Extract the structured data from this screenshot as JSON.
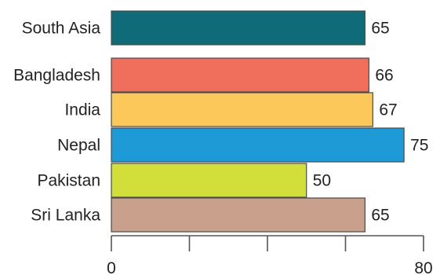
{
  "chart_data": {
    "type": "bar",
    "orientation": "horizontal",
    "categories": [
      "South Asia",
      "Bangladesh",
      "India",
      "Nepal",
      "Pakistan",
      "Sri Lanka"
    ],
    "values": [
      65,
      66,
      67,
      75,
      50,
      65
    ],
    "colors": [
      "#0f6b78",
      "#ef6f5c",
      "#fdc85a",
      "#1e9ad6",
      "#d2df3a",
      "#c8a08c"
    ],
    "xlim": [
      0,
      80
    ],
    "x_tick_values": [
      0,
      20,
      40,
      60,
      80
    ],
    "x_tick_labels": [
      "0",
      "",
      "",
      "",
      "80"
    ],
    "title": "",
    "xlabel": "",
    "ylabel": "",
    "grid": false
  }
}
